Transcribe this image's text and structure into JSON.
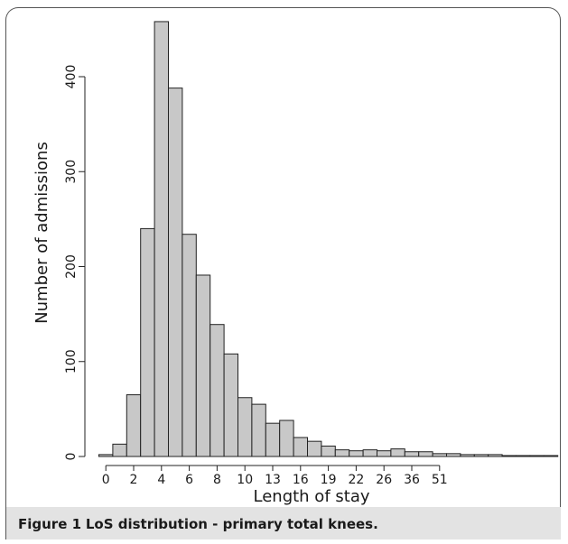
{
  "caption": {
    "label": "Figure 1",
    "text": "LoS distribution - primary total knees."
  },
  "chart_data": {
    "type": "bar",
    "title": "",
    "xlabel": "Length of stay",
    "ylabel": "Number of admissions",
    "ylim": [
      0,
      450
    ],
    "y_ticks": [
      0,
      100,
      200,
      300,
      400
    ],
    "x_tick_labels": [
      "0",
      "2",
      "4",
      "6",
      "8",
      "10",
      "13",
      "16",
      "19",
      "22",
      "26",
      "36",
      "51"
    ],
    "bar_color": "#c8c8c8",
    "values": [
      2,
      13,
      65,
      240,
      458,
      388,
      234,
      191,
      139,
      108,
      62,
      55,
      35,
      38,
      20,
      16,
      11,
      7,
      6,
      7,
      6,
      8,
      5,
      5,
      3,
      3,
      2,
      2,
      2,
      1,
      1,
      1,
      1
    ],
    "grid": false
  }
}
